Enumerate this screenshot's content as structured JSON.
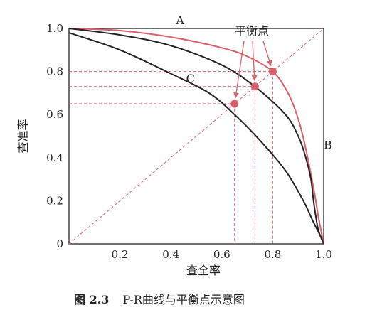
{
  "chart_data": {
    "type": "line",
    "xlabel": "查全率",
    "ylabel": "查准率",
    "xlim": [
      0,
      1
    ],
    "ylim": [
      0,
      1
    ],
    "x_ticks": [
      "0.2",
      "0.4",
      "0.6",
      "0.8",
      "1.0"
    ],
    "y_ticks": [
      "0",
      "0.2",
      "0.4",
      "0.6",
      "0.8",
      "1.0"
    ],
    "grid": false,
    "series": [
      {
        "name": "A",
        "color": "#d9606a",
        "x": [
          0,
          0.2,
          0.4,
          0.6,
          0.7,
          0.8,
          0.86,
          0.9,
          0.93,
          0.96,
          0.98,
          1.0
        ],
        "y": [
          1.0,
          0.99,
          0.96,
          0.91,
          0.87,
          0.8,
          0.7,
          0.58,
          0.44,
          0.26,
          0.12,
          0
        ]
      },
      {
        "name": "B",
        "color": "#222222",
        "x": [
          0,
          0.2,
          0.4,
          0.6,
          0.73,
          0.85,
          0.9,
          0.93,
          0.95,
          0.96,
          0.97,
          0.98,
          1.0
        ],
        "y": [
          1.0,
          0.97,
          0.92,
          0.83,
          0.73,
          0.6,
          0.5,
          0.4,
          0.3,
          0.2,
          0.12,
          0.06,
          0
        ]
      },
      {
        "name": "C",
        "color": "#222222",
        "x": [
          0,
          0.2,
          0.4,
          0.55,
          0.65,
          0.75,
          0.85,
          0.92,
          0.96,
          0.99,
          1.0
        ],
        "y": [
          0.98,
          0.9,
          0.79,
          0.7,
          0.6,
          0.48,
          0.34,
          0.2,
          0.1,
          0.03,
          0
        ]
      }
    ],
    "diagonal": {
      "color": "#d9606a",
      "x": [
        0,
        1
      ],
      "y": [
        0,
        1
      ]
    },
    "break_even_points": [
      {
        "x": 0.65,
        "y": 0.65
      },
      {
        "x": 0.73,
        "y": 0.73
      },
      {
        "x": 0.8,
        "y": 0.8
      }
    ],
    "annotation": "平衡点",
    "point_color": "#d9606a"
  },
  "caption": {
    "number": "图 2.3",
    "text": "P-R曲线与平衡点示意图"
  }
}
